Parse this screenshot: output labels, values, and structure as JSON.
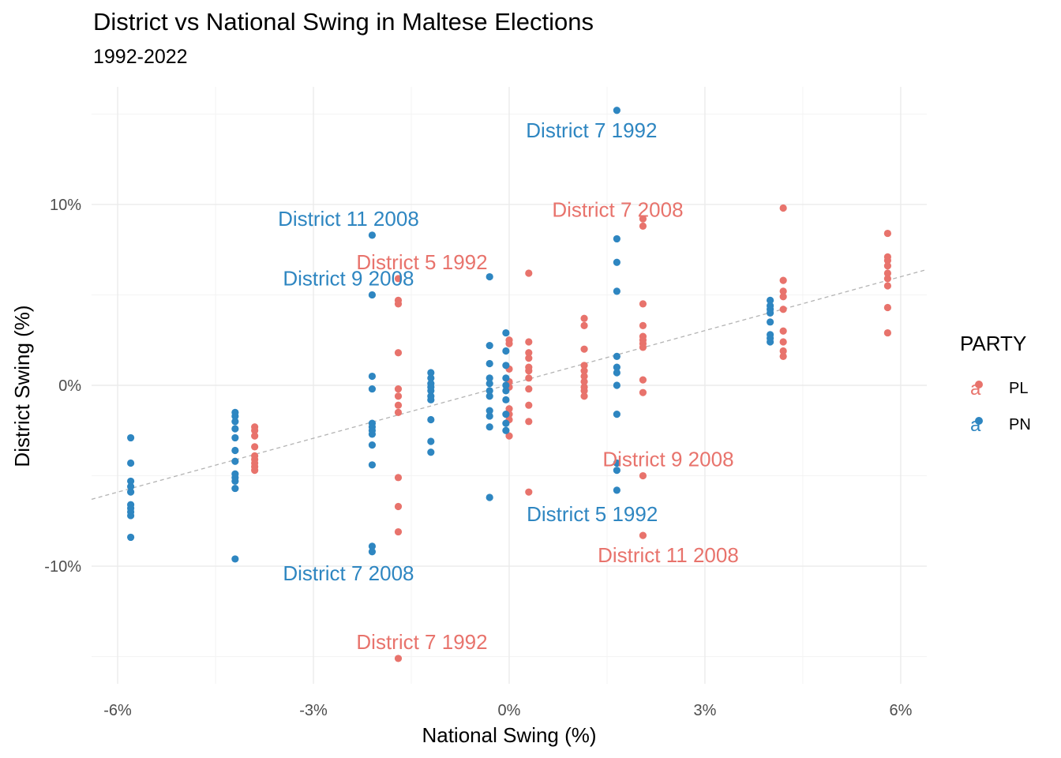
{
  "title": "District vs National Swing in Maltese Elections",
  "subtitle": "1992-2022",
  "legend": {
    "title": "PARTY",
    "items": [
      {
        "label": "PL",
        "color": "#E8736C",
        "glyph": "a"
      },
      {
        "label": "PN",
        "color": "#2E86C1",
        "glyph": "a"
      }
    ]
  },
  "chart_data": {
    "type": "scatter",
    "title": "District vs National Swing in Maltese Elections",
    "subtitle": "1992-2022",
    "xlabel": "National Swing (%)",
    "ylabel": "District Swing (%)",
    "xlim": [
      -6.4,
      6.4
    ],
    "ylim": [
      -16.5,
      16.5
    ],
    "x_ticks": [
      -6,
      -3,
      0,
      3,
      6
    ],
    "x_tick_labels": [
      "-6%",
      "-3%",
      "0%",
      "3%",
      "6%"
    ],
    "y_ticks": [
      -10,
      0,
      10
    ],
    "y_tick_labels": [
      "-10%",
      "0%",
      "10%"
    ],
    "grid": true,
    "legend_position": "right",
    "trend_line": {
      "style": "dashed",
      "color": "#b3b3b3",
      "x": [
        -6.4,
        6.4
      ],
      "y": [
        -6.3,
        6.4
      ]
    },
    "series": [
      {
        "name": "PL",
        "color": "#E8736C",
        "points": [
          [
            -3.9,
            -2.3
          ],
          [
            -3.9,
            -2.5
          ],
          [
            -3.9,
            -2.8
          ],
          [
            -3.9,
            -3.4
          ],
          [
            -3.9,
            -3.9
          ],
          [
            -3.9,
            -4.1
          ],
          [
            -3.9,
            -4.3
          ],
          [
            -3.9,
            -4.5
          ],
          [
            -3.9,
            -4.7
          ],
          [
            -1.7,
            5.9
          ],
          [
            -1.7,
            4.7
          ],
          [
            -1.7,
            4.5
          ],
          [
            -1.7,
            1.8
          ],
          [
            -1.7,
            -0.2
          ],
          [
            -1.7,
            -0.6
          ],
          [
            -1.7,
            -1.1
          ],
          [
            -1.7,
            -1.5
          ],
          [
            -1.7,
            -5.1
          ],
          [
            -1.7,
            -6.7
          ],
          [
            -1.7,
            -8.1
          ],
          [
            -1.7,
            -15.1
          ],
          [
            0.0,
            2.5
          ],
          [
            0.0,
            2.3
          ],
          [
            0.0,
            0.9
          ],
          [
            0.0,
            0.2
          ],
          [
            0.0,
            -0.1
          ],
          [
            0.0,
            -1.3
          ],
          [
            0.0,
            -1.6
          ],
          [
            0.0,
            -2.8
          ],
          [
            0.0,
            -1.9
          ],
          [
            0.3,
            6.2
          ],
          [
            0.3,
            2.4
          ],
          [
            0.3,
            1.8
          ],
          [
            0.3,
            1.5
          ],
          [
            0.3,
            1.0
          ],
          [
            0.3,
            0.8
          ],
          [
            0.3,
            0.4
          ],
          [
            0.3,
            -0.2
          ],
          [
            0.3,
            -1.1
          ],
          [
            0.3,
            -2.0
          ],
          [
            0.3,
            -5.9
          ],
          [
            1.15,
            3.7
          ],
          [
            1.15,
            3.3
          ],
          [
            1.15,
            2.0
          ],
          [
            1.15,
            1.1
          ],
          [
            1.15,
            0.8
          ],
          [
            1.15,
            0.5
          ],
          [
            1.15,
            0.2
          ],
          [
            1.15,
            -0.1
          ],
          [
            1.15,
            -0.3
          ],
          [
            1.15,
            -0.6
          ],
          [
            2.05,
            9.2
          ],
          [
            2.05,
            8.8
          ],
          [
            2.05,
            4.5
          ],
          [
            2.05,
            3.3
          ],
          [
            2.05,
            2.7
          ],
          [
            2.05,
            2.5
          ],
          [
            2.05,
            2.3
          ],
          [
            2.05,
            2.1
          ],
          [
            2.05,
            0.3
          ],
          [
            2.05,
            -0.4
          ],
          [
            2.05,
            -5.0
          ],
          [
            2.05,
            -8.3
          ],
          [
            4.2,
            9.8
          ],
          [
            4.2,
            5.8
          ],
          [
            4.2,
            5.2
          ],
          [
            4.2,
            4.9
          ],
          [
            4.2,
            4.2
          ],
          [
            4.2,
            3.0
          ],
          [
            4.2,
            2.4
          ],
          [
            4.2,
            1.9
          ],
          [
            4.2,
            1.6
          ],
          [
            5.8,
            8.4
          ],
          [
            5.8,
            7.1
          ],
          [
            5.8,
            6.9
          ],
          [
            5.8,
            6.6
          ],
          [
            5.8,
            6.2
          ],
          [
            5.8,
            5.9
          ],
          [
            5.8,
            5.5
          ],
          [
            5.8,
            4.3
          ],
          [
            5.8,
            2.9
          ]
        ],
        "labels": [
          {
            "text": "District 5 1992",
            "x": -1.7,
            "y": 5.9
          },
          {
            "text": "District 7 2008",
            "x": 2.05,
            "y": 8.8
          },
          {
            "text": "District 9 2008",
            "x": 2.05,
            "y": -5.0
          },
          {
            "text": "District 11 2008",
            "x": 2.05,
            "y": -8.3
          },
          {
            "text": "District 7 1992",
            "x": -1.7,
            "y": -15.1
          }
        ]
      },
      {
        "name": "PN",
        "color": "#2E86C1",
        "points": [
          [
            -5.8,
            -2.9
          ],
          [
            -5.8,
            -4.3
          ],
          [
            -5.8,
            -5.3
          ],
          [
            -5.8,
            -5.6
          ],
          [
            -5.8,
            -5.9
          ],
          [
            -5.8,
            -6.6
          ],
          [
            -5.8,
            -6.8
          ],
          [
            -5.8,
            -7.0
          ],
          [
            -5.8,
            -7.2
          ],
          [
            -5.8,
            -8.4
          ],
          [
            -4.2,
            -1.5
          ],
          [
            -4.2,
            -1.7
          ],
          [
            -4.2,
            -2.0
          ],
          [
            -4.2,
            -2.4
          ],
          [
            -4.2,
            -2.9
          ],
          [
            -4.2,
            -3.6
          ],
          [
            -4.2,
            -4.2
          ],
          [
            -4.2,
            -4.9
          ],
          [
            -4.2,
            -5.1
          ],
          [
            -4.2,
            -5.3
          ],
          [
            -4.2,
            -5.7
          ],
          [
            -4.2,
            -9.6
          ],
          [
            -2.1,
            8.3
          ],
          [
            -2.1,
            5.0
          ],
          [
            -2.1,
            0.5
          ],
          [
            -2.1,
            -0.2
          ],
          [
            -2.1,
            -2.1
          ],
          [
            -2.1,
            -2.3
          ],
          [
            -2.1,
            -2.5
          ],
          [
            -2.1,
            -2.7
          ],
          [
            -2.1,
            -3.3
          ],
          [
            -2.1,
            -4.4
          ],
          [
            -2.1,
            -8.9
          ],
          [
            -2.1,
            -9.2
          ],
          [
            -1.2,
            0.7
          ],
          [
            -1.2,
            0.4
          ],
          [
            -1.2,
            0.1
          ],
          [
            -1.2,
            -0.1
          ],
          [
            -1.2,
            -0.3
          ],
          [
            -1.2,
            -0.6
          ],
          [
            -1.2,
            -0.8
          ],
          [
            -1.2,
            -1.9
          ],
          [
            -1.2,
            -3.1
          ],
          [
            -1.2,
            -3.7
          ],
          [
            -0.3,
            6.0
          ],
          [
            -0.3,
            2.2
          ],
          [
            -0.3,
            1.2
          ],
          [
            -0.3,
            0.4
          ],
          [
            -0.3,
            0.1
          ],
          [
            -0.3,
            -0.3
          ],
          [
            -0.3,
            -0.6
          ],
          [
            -0.3,
            -1.4
          ],
          [
            -0.3,
            -1.7
          ],
          [
            -0.3,
            -2.3
          ],
          [
            -0.3,
            -6.2
          ],
          [
            -0.05,
            2.9
          ],
          [
            -0.05,
            1.9
          ],
          [
            -0.05,
            1.1
          ],
          [
            -0.05,
            0.4
          ],
          [
            -0.05,
            0.0
          ],
          [
            -0.05,
            -0.3
          ],
          [
            -0.05,
            -0.8
          ],
          [
            -0.05,
            -1.6
          ],
          [
            -0.05,
            -2.1
          ],
          [
            -0.05,
            -2.5
          ],
          [
            1.65,
            15.2
          ],
          [
            1.65,
            8.1
          ],
          [
            1.65,
            6.8
          ],
          [
            1.65,
            5.2
          ],
          [
            1.65,
            1.6
          ],
          [
            1.65,
            1.0
          ],
          [
            1.65,
            0.7
          ],
          [
            1.65,
            0.0
          ],
          [
            1.65,
            -1.6
          ],
          [
            1.65,
            -4.3
          ],
          [
            1.65,
            -4.7
          ],
          [
            1.65,
            -5.8
          ],
          [
            4.0,
            4.7
          ],
          [
            4.0,
            4.4
          ],
          [
            4.0,
            4.2
          ],
          [
            4.0,
            4.0
          ],
          [
            4.0,
            3.5
          ],
          [
            4.0,
            2.8
          ],
          [
            4.0,
            2.6
          ],
          [
            4.0,
            2.4
          ]
        ],
        "labels": [
          {
            "text": "District 7 1992",
            "x": 1.65,
            "y": 15.2
          },
          {
            "text": "District 11 2008",
            "x": -2.1,
            "y": 8.3
          },
          {
            "text": "District 9 2008",
            "x": -2.1,
            "y": 5.0
          },
          {
            "text": "District 5 1992",
            "x": -0.3,
            "y": -6.2
          },
          {
            "text": "District 7 2008",
            "x": -2.1,
            "y": -9.2
          }
        ]
      }
    ]
  }
}
